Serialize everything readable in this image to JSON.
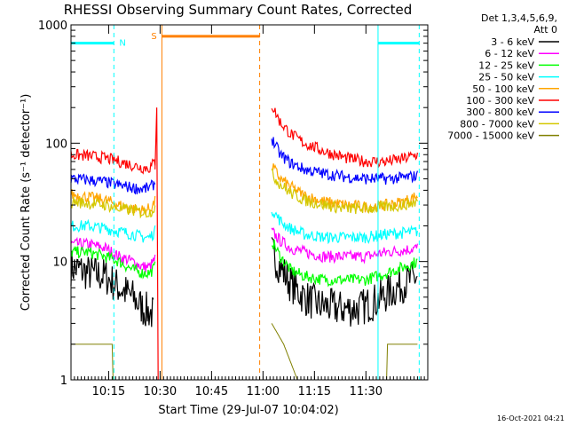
{
  "chart_data": {
    "type": "line",
    "title": "RHESSI Observing Summary Count Rates, Corrected",
    "xlabel": "Start Time (29-Jul-07 10:04:02)",
    "ylabel": "Corrected Count Rate (s⁻¹ detector⁻¹)",
    "yscale": "log",
    "ylim": [
      1,
      1000
    ],
    "xlim_minutes": [
      0,
      104
    ],
    "x_units": "minutes since 10:04:02",
    "x_ticks": [
      {
        "label": "10:15",
        "minutes": 10.97
      },
      {
        "label": "10:30",
        "minutes": 25.97
      },
      {
        "label": "10:45",
        "minutes": 40.97
      },
      {
        "label": "11:00",
        "minutes": 55.97
      },
      {
        "label": "11:15",
        "minutes": 70.97
      },
      {
        "label": "11:30",
        "minutes": 85.97
      }
    ],
    "y_ticks": [
      {
        "label": "1",
        "value": 1
      },
      {
        "label": "10",
        "value": 10
      },
      {
        "label": "100",
        "value": 100
      },
      {
        "label": "1000",
        "value": 1000
      }
    ],
    "grid": false,
    "legend_position": "top-right",
    "legend_header": [
      "Det 1,3,4,5,6,9,",
      "Att 0"
    ],
    "data_gap": {
      "start_minutes": 27,
      "end_minutes": 58
    },
    "bands": [
      {
        "name": "3 - 6 keV",
        "color": "#000000",
        "pre": [
          [
            0,
            9
          ],
          [
            5,
            8
          ],
          [
            10,
            7.5
          ],
          [
            14,
            6
          ],
          [
            18,
            5
          ],
          [
            21,
            4
          ],
          [
            24,
            3.6
          ]
        ],
        "post": [
          [
            58.5,
            12
          ],
          [
            61,
            9
          ],
          [
            64,
            6.5
          ],
          [
            68,
            5
          ],
          [
            72,
            4.3
          ],
          [
            78,
            4
          ],
          [
            84,
            4
          ],
          [
            88,
            4.5
          ],
          [
            93,
            5.5
          ],
          [
            97,
            6.5
          ],
          [
            101,
            7.5
          ]
        ]
      },
      {
        "name": "6 - 12 keV",
        "color": "#ff00ff",
        "pre": [
          [
            0,
            14
          ],
          [
            5,
            14
          ],
          [
            10,
            13
          ],
          [
            14,
            11
          ],
          [
            18,
            10
          ],
          [
            21,
            9
          ],
          [
            23,
            9
          ],
          [
            24.5,
            10.5
          ]
        ],
        "post": [
          [
            58.5,
            18
          ],
          [
            61,
            15
          ],
          [
            64,
            13
          ],
          [
            68,
            12
          ],
          [
            74,
            11
          ],
          [
            80,
            11
          ],
          [
            86,
            11
          ],
          [
            92,
            12
          ],
          [
            97,
            12.5
          ],
          [
            101,
            13
          ]
        ]
      },
      {
        "name": "12 - 25 keV",
        "color": "#00ff00",
        "pre": [
          [
            0,
            12
          ],
          [
            5,
            12
          ],
          [
            10,
            11
          ],
          [
            14,
            10
          ],
          [
            18,
            8.5
          ],
          [
            21,
            8
          ],
          [
            23,
            8
          ],
          [
            24.5,
            9
          ]
        ],
        "post": [
          [
            58.5,
            15
          ],
          [
            61,
            11
          ],
          [
            64,
            8.5
          ],
          [
            68,
            7.5
          ],
          [
            74,
            7
          ],
          [
            80,
            7
          ],
          [
            86,
            7
          ],
          [
            92,
            8
          ],
          [
            97,
            9
          ],
          [
            101,
            10
          ]
        ]
      },
      {
        "name": "25 - 50 keV",
        "color": "#00ffff",
        "pre": [
          [
            0,
            20
          ],
          [
            5,
            20
          ],
          [
            10,
            19
          ],
          [
            14,
            18
          ],
          [
            18,
            17
          ],
          [
            21,
            16
          ],
          [
            23,
            16
          ],
          [
            24.5,
            18
          ]
        ],
        "post": [
          [
            58.5,
            28
          ],
          [
            61,
            22
          ],
          [
            64,
            19
          ],
          [
            68,
            17
          ],
          [
            74,
            16
          ],
          [
            80,
            16
          ],
          [
            86,
            16
          ],
          [
            92,
            17
          ],
          [
            97,
            17.5
          ],
          [
            101,
            18
          ]
        ]
      },
      {
        "name": "50 - 100 keV",
        "color": "#ffa500",
        "pre": [
          [
            0,
            37
          ],
          [
            5,
            35
          ],
          [
            10,
            33
          ],
          [
            14,
            30
          ],
          [
            18,
            28
          ],
          [
            21,
            27
          ],
          [
            23,
            28
          ],
          [
            24.5,
            32
          ]
        ],
        "post": [
          [
            58.5,
            65
          ],
          [
            61,
            50
          ],
          [
            64,
            43
          ],
          [
            68,
            36
          ],
          [
            74,
            32
          ],
          [
            80,
            30
          ],
          [
            86,
            29
          ],
          [
            92,
            30
          ],
          [
            97,
            32
          ],
          [
            101,
            36
          ]
        ]
      },
      {
        "name": "100 - 300 keV",
        "color": "#ff0000",
        "pre": [
          [
            0,
            80
          ],
          [
            5,
            78
          ],
          [
            10,
            75
          ],
          [
            14,
            70
          ],
          [
            18,
            65
          ],
          [
            21,
            62
          ],
          [
            23,
            62
          ],
          [
            24.5,
            70
          ]
        ],
        "post": [
          [
            58.5,
            210
          ],
          [
            61,
            150
          ],
          [
            64,
            120
          ],
          [
            68,
            100
          ],
          [
            74,
            85
          ],
          [
            80,
            75
          ],
          [
            86,
            70
          ],
          [
            92,
            70
          ],
          [
            97,
            74
          ],
          [
            101,
            80
          ]
        ]
      },
      {
        "name": "300 - 800 keV",
        "color": "#0000ff",
        "pre": [
          [
            0,
            50
          ],
          [
            5,
            49
          ],
          [
            10,
            47
          ],
          [
            14,
            44
          ],
          [
            18,
            42
          ],
          [
            21,
            41
          ],
          [
            23,
            42
          ],
          [
            24.5,
            46
          ]
        ],
        "post": [
          [
            58.5,
            110
          ],
          [
            61,
            80
          ],
          [
            64,
            68
          ],
          [
            68,
            60
          ],
          [
            74,
            55
          ],
          [
            80,
            52
          ],
          [
            86,
            50
          ],
          [
            92,
            50
          ],
          [
            97,
            51
          ],
          [
            101,
            53
          ]
        ]
      },
      {
        "name": "800 - 7000 keV",
        "color": "#d4c800",
        "pre": [
          [
            0,
            32
          ],
          [
            5,
            31
          ],
          [
            10,
            30
          ],
          [
            14,
            28
          ],
          [
            18,
            27
          ],
          [
            21,
            26
          ],
          [
            23,
            26
          ],
          [
            24.5,
            29
          ]
        ],
        "post": [
          [
            58.5,
            55
          ],
          [
            61,
            45
          ],
          [
            64,
            38
          ],
          [
            68,
            33
          ],
          [
            74,
            30
          ],
          [
            80,
            28
          ],
          [
            86,
            28
          ],
          [
            92,
            29
          ],
          [
            97,
            30
          ],
          [
            101,
            32
          ]
        ]
      },
      {
        "name": "7000 - 15000 keV",
        "color": "#808000",
        "pre": [
          [
            0,
            2
          ],
          [
            12,
            2
          ],
          [
            12.1,
            1
          ],
          [
            24,
            1
          ]
        ],
        "post": [
          [
            58.5,
            3
          ],
          [
            62,
            2
          ],
          [
            66,
            1
          ],
          [
            92,
            1
          ],
          [
            92.1,
            2
          ],
          [
            101,
            2
          ]
        ]
      }
    ],
    "spike": {
      "minutes": 25,
      "peak_value": 200
    },
    "markers": [
      {
        "label": "N",
        "color": "#00ffff",
        "start_minutes": 0,
        "end_minutes": 12.5,
        "level": 700
      },
      {
        "label": "S",
        "color": "#ff8000",
        "start_minutes": 26.5,
        "end_minutes": 55,
        "level": 800
      },
      {
        "label": "",
        "color": "#00ffff",
        "start_minutes": 89.5,
        "end_minutes": 101.5,
        "level": 700
      }
    ]
  },
  "timestamp": "16-Oct-2021 04:21"
}
